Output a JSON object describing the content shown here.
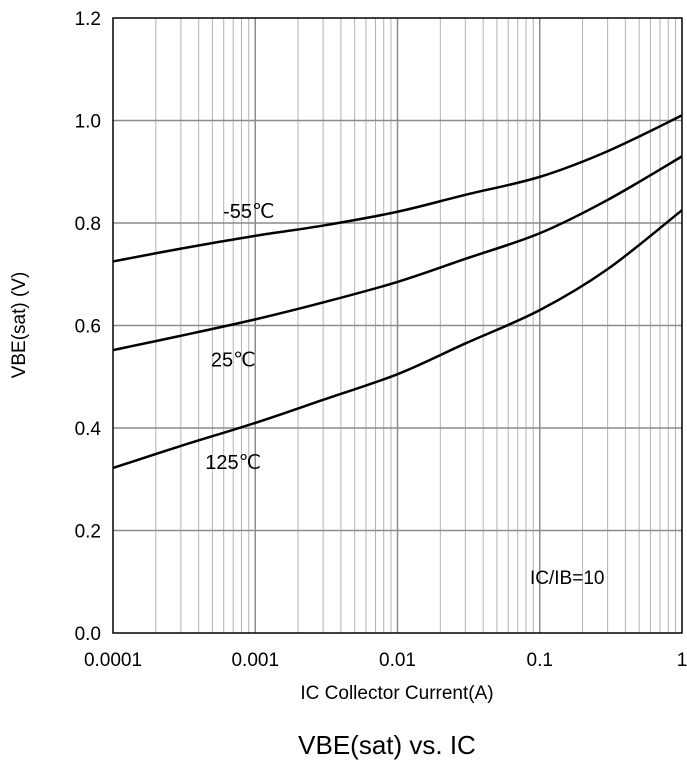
{
  "chart_data": {
    "type": "line",
    "title": "VBE(sat) vs. IC",
    "xlabel": "IC Collector Current(A)",
    "ylabel": "VBE(sat) (V)",
    "xscale": "log",
    "xlim": [
      0.0001,
      1
    ],
    "ylim": [
      0,
      1.2
    ],
    "x_ticks": [
      "0.0001",
      "0.001",
      "0.01",
      "0.1",
      "1"
    ],
    "y_ticks": [
      "0.0",
      "0.2",
      "0.4",
      "0.6",
      "0.8",
      "1.0",
      "1.2"
    ],
    "grid": true,
    "annotation": "IC/IB=10",
    "series": [
      {
        "name": "-55℃",
        "x": [
          0.0001,
          0.0003,
          0.001,
          0.003,
          0.01,
          0.03,
          0.1,
          0.3,
          1
        ],
        "y": [
          0.725,
          0.75,
          0.775,
          0.795,
          0.822,
          0.855,
          0.89,
          0.94,
          1.01
        ]
      },
      {
        "name": "25℃",
        "x": [
          0.0001,
          0.0003,
          0.001,
          0.003,
          0.01,
          0.03,
          0.1,
          0.3,
          1
        ],
        "y": [
          0.552,
          0.58,
          0.612,
          0.645,
          0.685,
          0.73,
          0.78,
          0.845,
          0.93
        ]
      },
      {
        "name": "125℃",
        "x": [
          0.0001,
          0.0003,
          0.001,
          0.003,
          0.01,
          0.03,
          0.1,
          0.3,
          1
        ],
        "y": [
          0.322,
          0.365,
          0.41,
          0.455,
          0.505,
          0.565,
          0.63,
          0.71,
          0.825
        ]
      }
    ]
  }
}
